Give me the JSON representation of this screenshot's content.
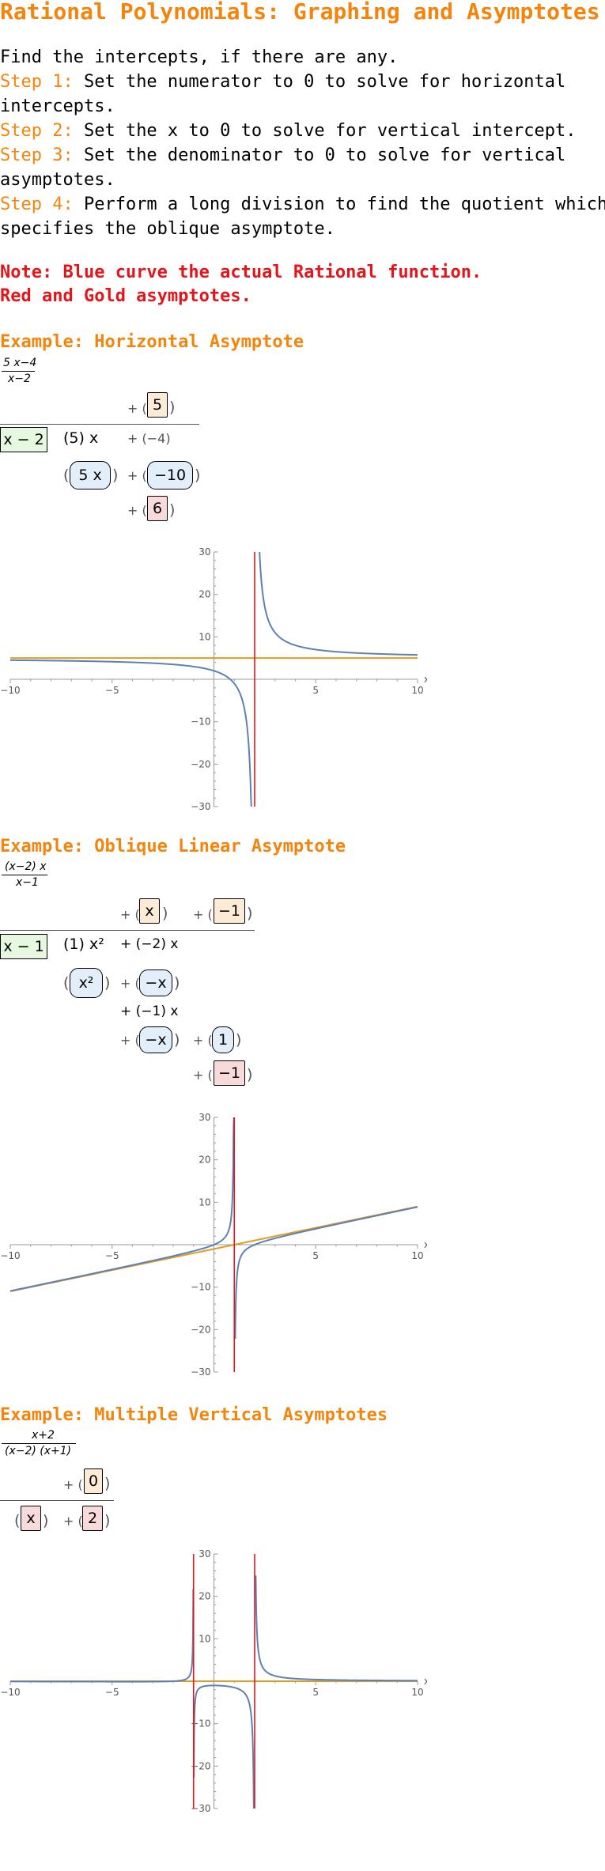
{
  "title": "Rational Polynomials: Graphing and Asymptotes",
  "intro": "Find the intercepts, if there are any.",
  "steps": [
    {
      "label": "Step 1:",
      "line1": " Set the numerator to 0 to solve for horizontal",
      "line2": "intercepts."
    },
    {
      "label": "Step 2:",
      "line1": " Set the x to 0 to solve for vertical intercept.",
      "line2": ""
    },
    {
      "label": "Step 3:",
      "line1": " Set the denominator to 0 to solve for vertical",
      "line2": "asymptotes."
    },
    {
      "label": "Step 4:",
      "line1": " Perform a long division to find the quotient which",
      "line2": "specifies the oblique asymptote."
    }
  ],
  "note": {
    "line1": "Note: Blue curve the actual Rational function.",
    "line2": "Red and Gold asymptotes."
  },
  "colors": {
    "heading": "#f5840c",
    "note": "#e5141a",
    "function_curve": "#5e81b5",
    "vertical_asymptote": "#e5141a",
    "other_asymptote": "#e19c24"
  },
  "examples": [
    {
      "heading": "Example: Horizontal Asymptote",
      "function": {
        "numerator": "5 x−4",
        "denominator": "x−2"
      },
      "division": {
        "divisor": "x − 2",
        "quotient": [
          "5"
        ],
        "dividend": [
          "(5) x",
          "+ (−4)"
        ],
        "subtracted": [
          "5 x",
          "−10"
        ],
        "remainder": "6"
      },
      "chart_data": {
        "type": "line",
        "function": "(5x−4)/(x−2)",
        "xlabel": "x",
        "xlim": [
          -10,
          10
        ],
        "ylim": [
          -30,
          30
        ],
        "x_ticks": [
          "−10",
          "−5",
          "5",
          "10"
        ],
        "y_ticks": [
          "30",
          "20",
          "10",
          "−10",
          "−20",
          "−30"
        ],
        "vertical_asymptotes": [
          2
        ],
        "horizontal_asymptote": 5
      }
    },
    {
      "heading": "Example: Oblique Linear Asymptote",
      "function": {
        "numerator": "(x−2) x",
        "denominator": "x−1"
      },
      "division": {
        "divisor": "x − 1",
        "quotient": [
          "x",
          "−1"
        ],
        "dividend": [
          "(1) x²",
          "+ (−2) x"
        ],
        "subtracted": [
          "x²",
          "−x"
        ],
        "step2": "+ (−1) x",
        "subtracted2": [
          "−x",
          "1"
        ],
        "remainder": "−1"
      },
      "chart_data": {
        "type": "line",
        "function": "(x−2)x/(x−1)",
        "xlabel": "x",
        "xlim": [
          -10,
          10
        ],
        "ylim": [
          -30,
          30
        ],
        "x_ticks": [
          "−10",
          "−5",
          "5",
          "10"
        ],
        "y_ticks": [
          "30",
          "20",
          "10",
          "−10",
          "−20",
          "−30"
        ],
        "vertical_asymptotes": [
          1
        ],
        "oblique_asymptote": "x − 1"
      }
    },
    {
      "heading": "Example: Multiple Vertical Asymptotes",
      "function": {
        "numerator": "x+2",
        "denominator": "(x−2) (x+1)"
      },
      "division": {
        "quotient": [
          "0"
        ],
        "dividend": [
          "x",
          "2"
        ]
      },
      "chart_data": {
        "type": "line",
        "function": "(x+2)/((x−2)(x+1))",
        "xlabel": "x",
        "xlim": [
          -10,
          10
        ],
        "ylim": [
          -30,
          30
        ],
        "x_ticks": [
          "−10",
          "−5",
          "5",
          "10"
        ],
        "y_ticks": [
          "30",
          "20",
          "10",
          "−10",
          "−20",
          "−30"
        ],
        "vertical_asymptotes": [
          -1,
          2
        ],
        "horizontal_asymptote": 0
      }
    }
  ]
}
